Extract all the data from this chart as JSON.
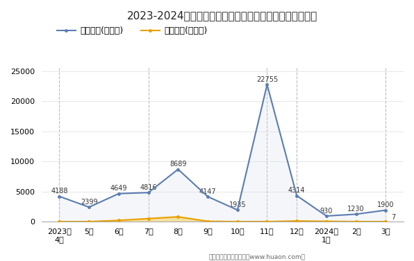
{
  "title": "2023-2024年石河子市商品收发货人所在地进、出口额统计",
  "x_labels": [
    "2023年\n4月",
    "5月",
    "6月",
    "7月",
    "8月",
    "9月",
    "10月",
    "11月",
    "12月",
    "2024年\n1月",
    "2月",
    "3月"
  ],
  "export_values": [
    4188,
    2399,
    4649,
    4816,
    8689,
    4147,
    1935,
    22755,
    4314,
    930,
    1230,
    1900
  ],
  "import_values": [
    0,
    0,
    200,
    500,
    800,
    50,
    0,
    0,
    100,
    50,
    0,
    7
  ],
  "export_label": "出口总额(万美元)",
  "import_label": "进口总额(万美元)",
  "export_color": "#5B7DB1",
  "import_color": "#E8A000",
  "export_fill_color": "#D6DCE8",
  "import_fill_color": "#F5D87A",
  "ylim": [
    0,
    27000
  ],
  "yticks": [
    0,
    5000,
    10000,
    15000,
    20000,
    25000
  ],
  "footer": "制图：华经产业研究院（www.huaon.com）",
  "vline_positions": [
    0,
    3,
    7,
    8,
    11
  ],
  "vline_color": "#BBBBBB"
}
